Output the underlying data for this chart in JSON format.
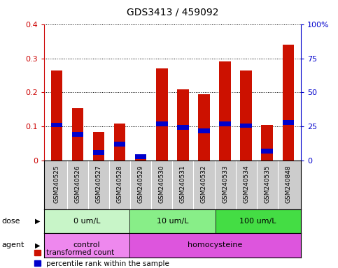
{
  "title": "GDS3413 / 459092",
  "samples": [
    "GSM240525",
    "GSM240526",
    "GSM240527",
    "GSM240528",
    "GSM240529",
    "GSM240530",
    "GSM240531",
    "GSM240532",
    "GSM240533",
    "GSM240534",
    "GSM240535",
    "GSM240848"
  ],
  "red_values": [
    0.265,
    0.155,
    0.085,
    0.11,
    0.015,
    0.27,
    0.21,
    0.195,
    0.29,
    0.265,
    0.105,
    0.34
  ],
  "blue_values": [
    0.105,
    0.078,
    0.025,
    0.048,
    0.012,
    0.108,
    0.098,
    0.088,
    0.108,
    0.103,
    0.028,
    0.112
  ],
  "ylim_left": [
    0,
    0.4
  ],
  "ylim_right": [
    0,
    100
  ],
  "yticks_left": [
    0,
    0.1,
    0.2,
    0.3,
    0.4
  ],
  "yticks_right": [
    0,
    25,
    50,
    75,
    100
  ],
  "ytick_labels_left": [
    "0",
    "0.1",
    "0.2",
    "0.3",
    "0.4"
  ],
  "ytick_labels_right": [
    "0",
    "25",
    "50",
    "75",
    "100%"
  ],
  "dose_groups": [
    {
      "label": "0 um/L",
      "start": 0,
      "end": 4,
      "color": "#c8f5c8"
    },
    {
      "label": "10 um/L",
      "start": 4,
      "end": 8,
      "color": "#88ee88"
    },
    {
      "label": "100 um/L",
      "start": 8,
      "end": 12,
      "color": "#44dd44"
    }
  ],
  "agent_groups": [
    {
      "label": "control",
      "start": 0,
      "end": 4,
      "color": "#ee88ee"
    },
    {
      "label": "homocysteine",
      "start": 4,
      "end": 12,
      "color": "#dd55dd"
    }
  ],
  "bar_color_red": "#cc1100",
  "bar_color_blue": "#0000cc",
  "bar_width": 0.55,
  "blue_bar_height": 0.014,
  "legend_red": "transformed count",
  "legend_blue": "percentile rank within the sample",
  "xlabel_dose": "dose",
  "xlabel_agent": "agent",
  "left_axis_color": "#cc0000",
  "right_axis_color": "#0000cc",
  "sample_bg": "#cccccc",
  "title_fontsize": 10,
  "tick_fontsize": 8,
  "label_fontsize": 8,
  "legend_fontsize": 7.5
}
